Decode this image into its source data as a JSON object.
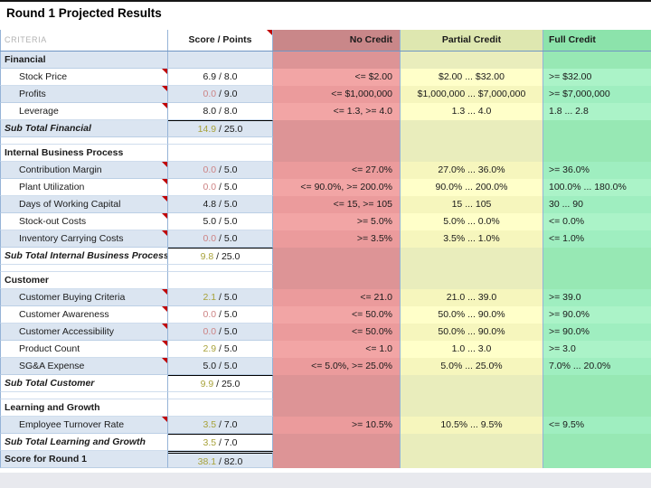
{
  "title": "Round 1 Projected Results",
  "columns": {
    "criteria": "CRITERIA",
    "score": "Score / Points",
    "no_credit": "No Credit",
    "partial_credit": "Partial Credit",
    "full_credit": "Full Credit"
  },
  "colors": {
    "no_credit_column": "#f2a5a5",
    "partial_credit_column": "#ffffc9",
    "full_credit_column": "#abf3c8",
    "stripe_blue": "#dbe5f1",
    "partial_score_text": "#a8a23a",
    "zero_score_text": "#cd8384",
    "comment_marker": "#c00000"
  },
  "score_separator": " / ",
  "rows": [
    {
      "type": "section",
      "label": "Financial",
      "striped": true
    },
    {
      "type": "item",
      "label": "Stock Price",
      "score": "6.9",
      "max": "8.0",
      "score_color": "black",
      "no": "<= $2.00",
      "partial": "$2.00 ... $32.00",
      "full": ">= $32.00",
      "striped": false,
      "marker": true
    },
    {
      "type": "item",
      "label": "Profits",
      "score": "0.0",
      "max": "9.0",
      "score_color": "red",
      "no": "<= $1,000,000",
      "partial": "$1,000,000 ... $7,000,000",
      "full": ">= $7,000,000",
      "striped": true,
      "marker": true
    },
    {
      "type": "item",
      "label": "Leverage",
      "score": "8.0",
      "max": "8.0",
      "score_color": "black",
      "no": "<= 1.3, >= 4.0",
      "partial": "1.3 ... 4.0",
      "full": "1.8 ... 2.8",
      "striped": false,
      "marker": true
    },
    {
      "type": "subtotal",
      "label": "Sub Total Financial",
      "score": "14.9",
      "max": "25.0",
      "score_color": "olive",
      "striped": true
    },
    {
      "type": "spacer"
    },
    {
      "type": "section",
      "label": "Internal Business Process",
      "striped": false
    },
    {
      "type": "item",
      "label": "Contribution Margin",
      "score": "0.0",
      "max": "5.0",
      "score_color": "red",
      "no": "<= 27.0%",
      "partial": "27.0% ... 36.0%",
      "full": ">= 36.0%",
      "striped": true,
      "marker": true
    },
    {
      "type": "item",
      "label": "Plant Utilization",
      "score": "0.0",
      "max": "5.0",
      "score_color": "red",
      "no": "<= 90.0%, >= 200.0%",
      "partial": "90.0% ... 200.0%",
      "full": "100.0% ... 180.0%",
      "striped": false,
      "marker": true
    },
    {
      "type": "item",
      "label": "Days of Working Capital",
      "score": "4.8",
      "max": "5.0",
      "score_color": "black",
      "no": "<= 15, >= 105",
      "partial": "15 ... 105",
      "full": "30 ... 90",
      "striped": true,
      "marker": true
    },
    {
      "type": "item",
      "label": "Stock-out Costs",
      "score": "5.0",
      "max": "5.0",
      "score_color": "black",
      "no": ">= 5.0%",
      "partial": "5.0% ... 0.0%",
      "full": "<= 0.0%",
      "striped": false,
      "marker": true
    },
    {
      "type": "item",
      "label": "Inventory Carrying Costs",
      "score": "0.0",
      "max": "5.0",
      "score_color": "red",
      "no": ">= 3.5%",
      "partial": "3.5% ... 1.0%",
      "full": "<= 1.0%",
      "striped": true,
      "marker": true
    },
    {
      "type": "subtotal",
      "label": "Sub Total Internal Business Process",
      "score": "9.8",
      "max": "25.0",
      "score_color": "olive",
      "striped": false
    },
    {
      "type": "spacer"
    },
    {
      "type": "section",
      "label": "Customer",
      "striped": false
    },
    {
      "type": "item",
      "label": "Customer Buying Criteria",
      "score": "2.1",
      "max": "5.0",
      "score_color": "olive",
      "no": "<= 21.0",
      "partial": "21.0 ... 39.0",
      "full": ">= 39.0",
      "striped": true,
      "marker": true
    },
    {
      "type": "item",
      "label": "Customer Awareness",
      "score": "0.0",
      "max": "5.0",
      "score_color": "red",
      "no": "<= 50.0%",
      "partial": "50.0% ... 90.0%",
      "full": ">= 90.0%",
      "striped": false,
      "marker": true
    },
    {
      "type": "item",
      "label": "Customer Accessibility",
      "score": "0.0",
      "max": "5.0",
      "score_color": "red",
      "no": "<= 50.0%",
      "partial": "50.0% ... 90.0%",
      "full": ">= 90.0%",
      "striped": true,
      "marker": true
    },
    {
      "type": "item",
      "label": "Product Count",
      "score": "2.9",
      "max": "5.0",
      "score_color": "olive",
      "no": "<= 1.0",
      "partial": "1.0 ... 3.0",
      "full": ">= 3.0",
      "striped": false,
      "marker": true
    },
    {
      "type": "item",
      "label": "SG&A Expense",
      "score": "5.0",
      "max": "5.0",
      "score_color": "black",
      "no": "<= 5.0%, >= 25.0%",
      "partial": "5.0% ... 25.0%",
      "full": "7.0% ... 20.0%",
      "striped": true,
      "marker": true
    },
    {
      "type": "subtotal",
      "label": "Sub Total Customer",
      "score": "9.9",
      "max": "25.0",
      "score_color": "olive",
      "striped": false
    },
    {
      "type": "spacer"
    },
    {
      "type": "section",
      "label": "Learning and Growth",
      "striped": false
    },
    {
      "type": "item",
      "label": "Employee Turnover Rate",
      "score": "3.5",
      "max": "7.0",
      "score_color": "olive",
      "no": ">= 10.5%",
      "partial": "10.5% ... 9.5%",
      "full": "<= 9.5%",
      "striped": true,
      "marker": true
    },
    {
      "type": "subtotal",
      "label": "Sub Total Learning and Growth",
      "score": "3.5",
      "max": "7.0",
      "score_color": "olive",
      "striped": false
    },
    {
      "type": "score",
      "label": "Score for Round 1",
      "score": "38.1",
      "max": "82.0",
      "score_color": "olive",
      "striped": true
    }
  ]
}
